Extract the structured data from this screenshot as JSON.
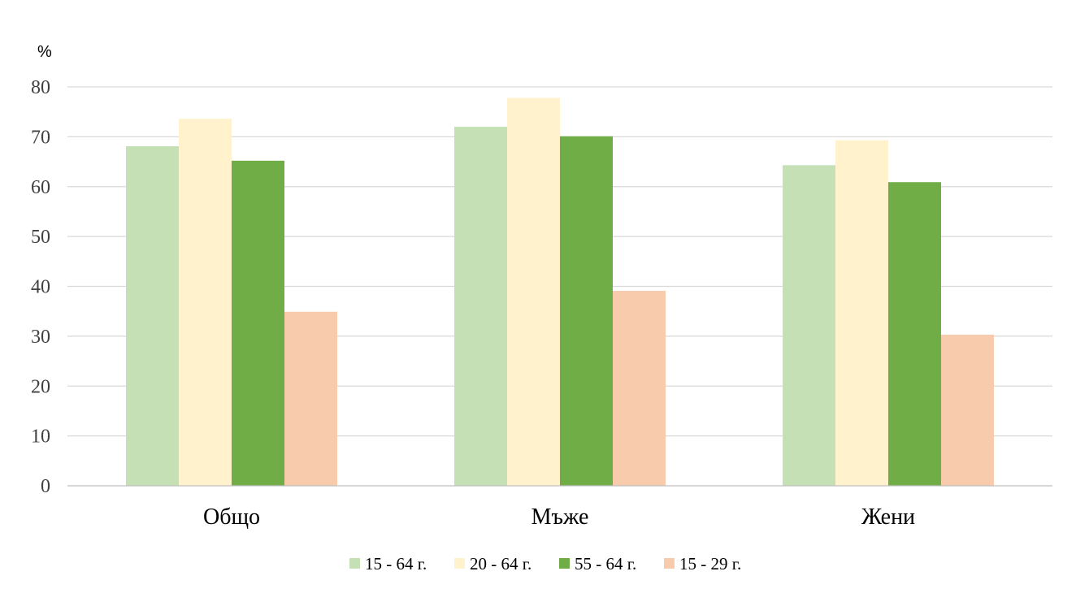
{
  "chart_data": {
    "type": "bar",
    "unit_label": "%",
    "title": "",
    "xlabel": "",
    "ylabel": "",
    "ylim": [
      0,
      80
    ],
    "yticks": [
      0,
      10,
      20,
      30,
      40,
      50,
      60,
      70,
      80
    ],
    "grid": true,
    "legend_position": "bottom",
    "categories": [
      "Общо",
      "Мъже",
      "Жени"
    ],
    "series": [
      {
        "name": "15 - 64 г.",
        "color": "#c5e0b4",
        "values": [
          68.1,
          72.0,
          64.3
        ]
      },
      {
        "name": "20 - 64 г.",
        "color": "#fff2cc",
        "values": [
          73.6,
          77.8,
          69.3
        ]
      },
      {
        "name": "55 - 64 г.",
        "color": "#70ad47",
        "values": [
          65.2,
          70.1,
          60.9
        ]
      },
      {
        "name": "15 - 29 г.",
        "color": "#f8cbad",
        "values": [
          34.9,
          39.1,
          30.3
        ]
      }
    ],
    "gridline_color": "#d9d9d9",
    "axis_color": "#bfbfbf"
  }
}
